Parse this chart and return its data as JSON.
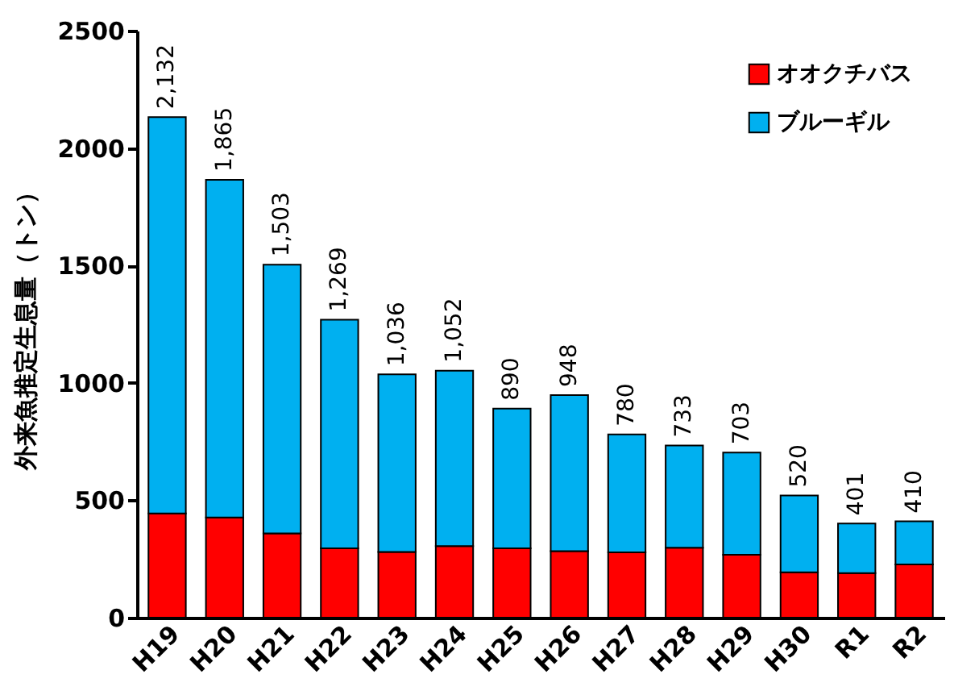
{
  "chart_data": {
    "type": "bar",
    "stacked": true,
    "ylabel": "外来魚推定生息量（トン）",
    "categories": [
      "H19",
      "H20",
      "H21",
      "H22",
      "H23",
      "H24",
      "H25",
      "H26",
      "H27",
      "H28",
      "H29",
      "H30",
      "R1",
      "R2"
    ],
    "series": [
      {
        "name": "オオクチバス",
        "color": "#ff0000",
        "values": [
          444,
          427,
          359,
          295,
          280,
          305,
          295,
          283,
          278,
          298,
          268,
          193,
          190,
          227
        ]
      },
      {
        "name": "ブルーギル",
        "color": "#00b0f0",
        "values": [
          1688,
          1438,
          1144,
          974,
          756,
          747,
          595,
          665,
          502,
          435,
          435,
          327,
          211,
          183
        ]
      }
    ],
    "totals": [
      "2,132",
      "1,865",
      "1,503",
      "1,269",
      "1,036",
      "1,052",
      "890",
      "948",
      "780",
      "733",
      "703",
      "520",
      "401",
      "410"
    ],
    "ylim": [
      0,
      2500
    ],
    "yticks": [
      0,
      500,
      1000,
      1500,
      2000,
      2500
    ],
    "grid": false,
    "legend": "top right"
  }
}
